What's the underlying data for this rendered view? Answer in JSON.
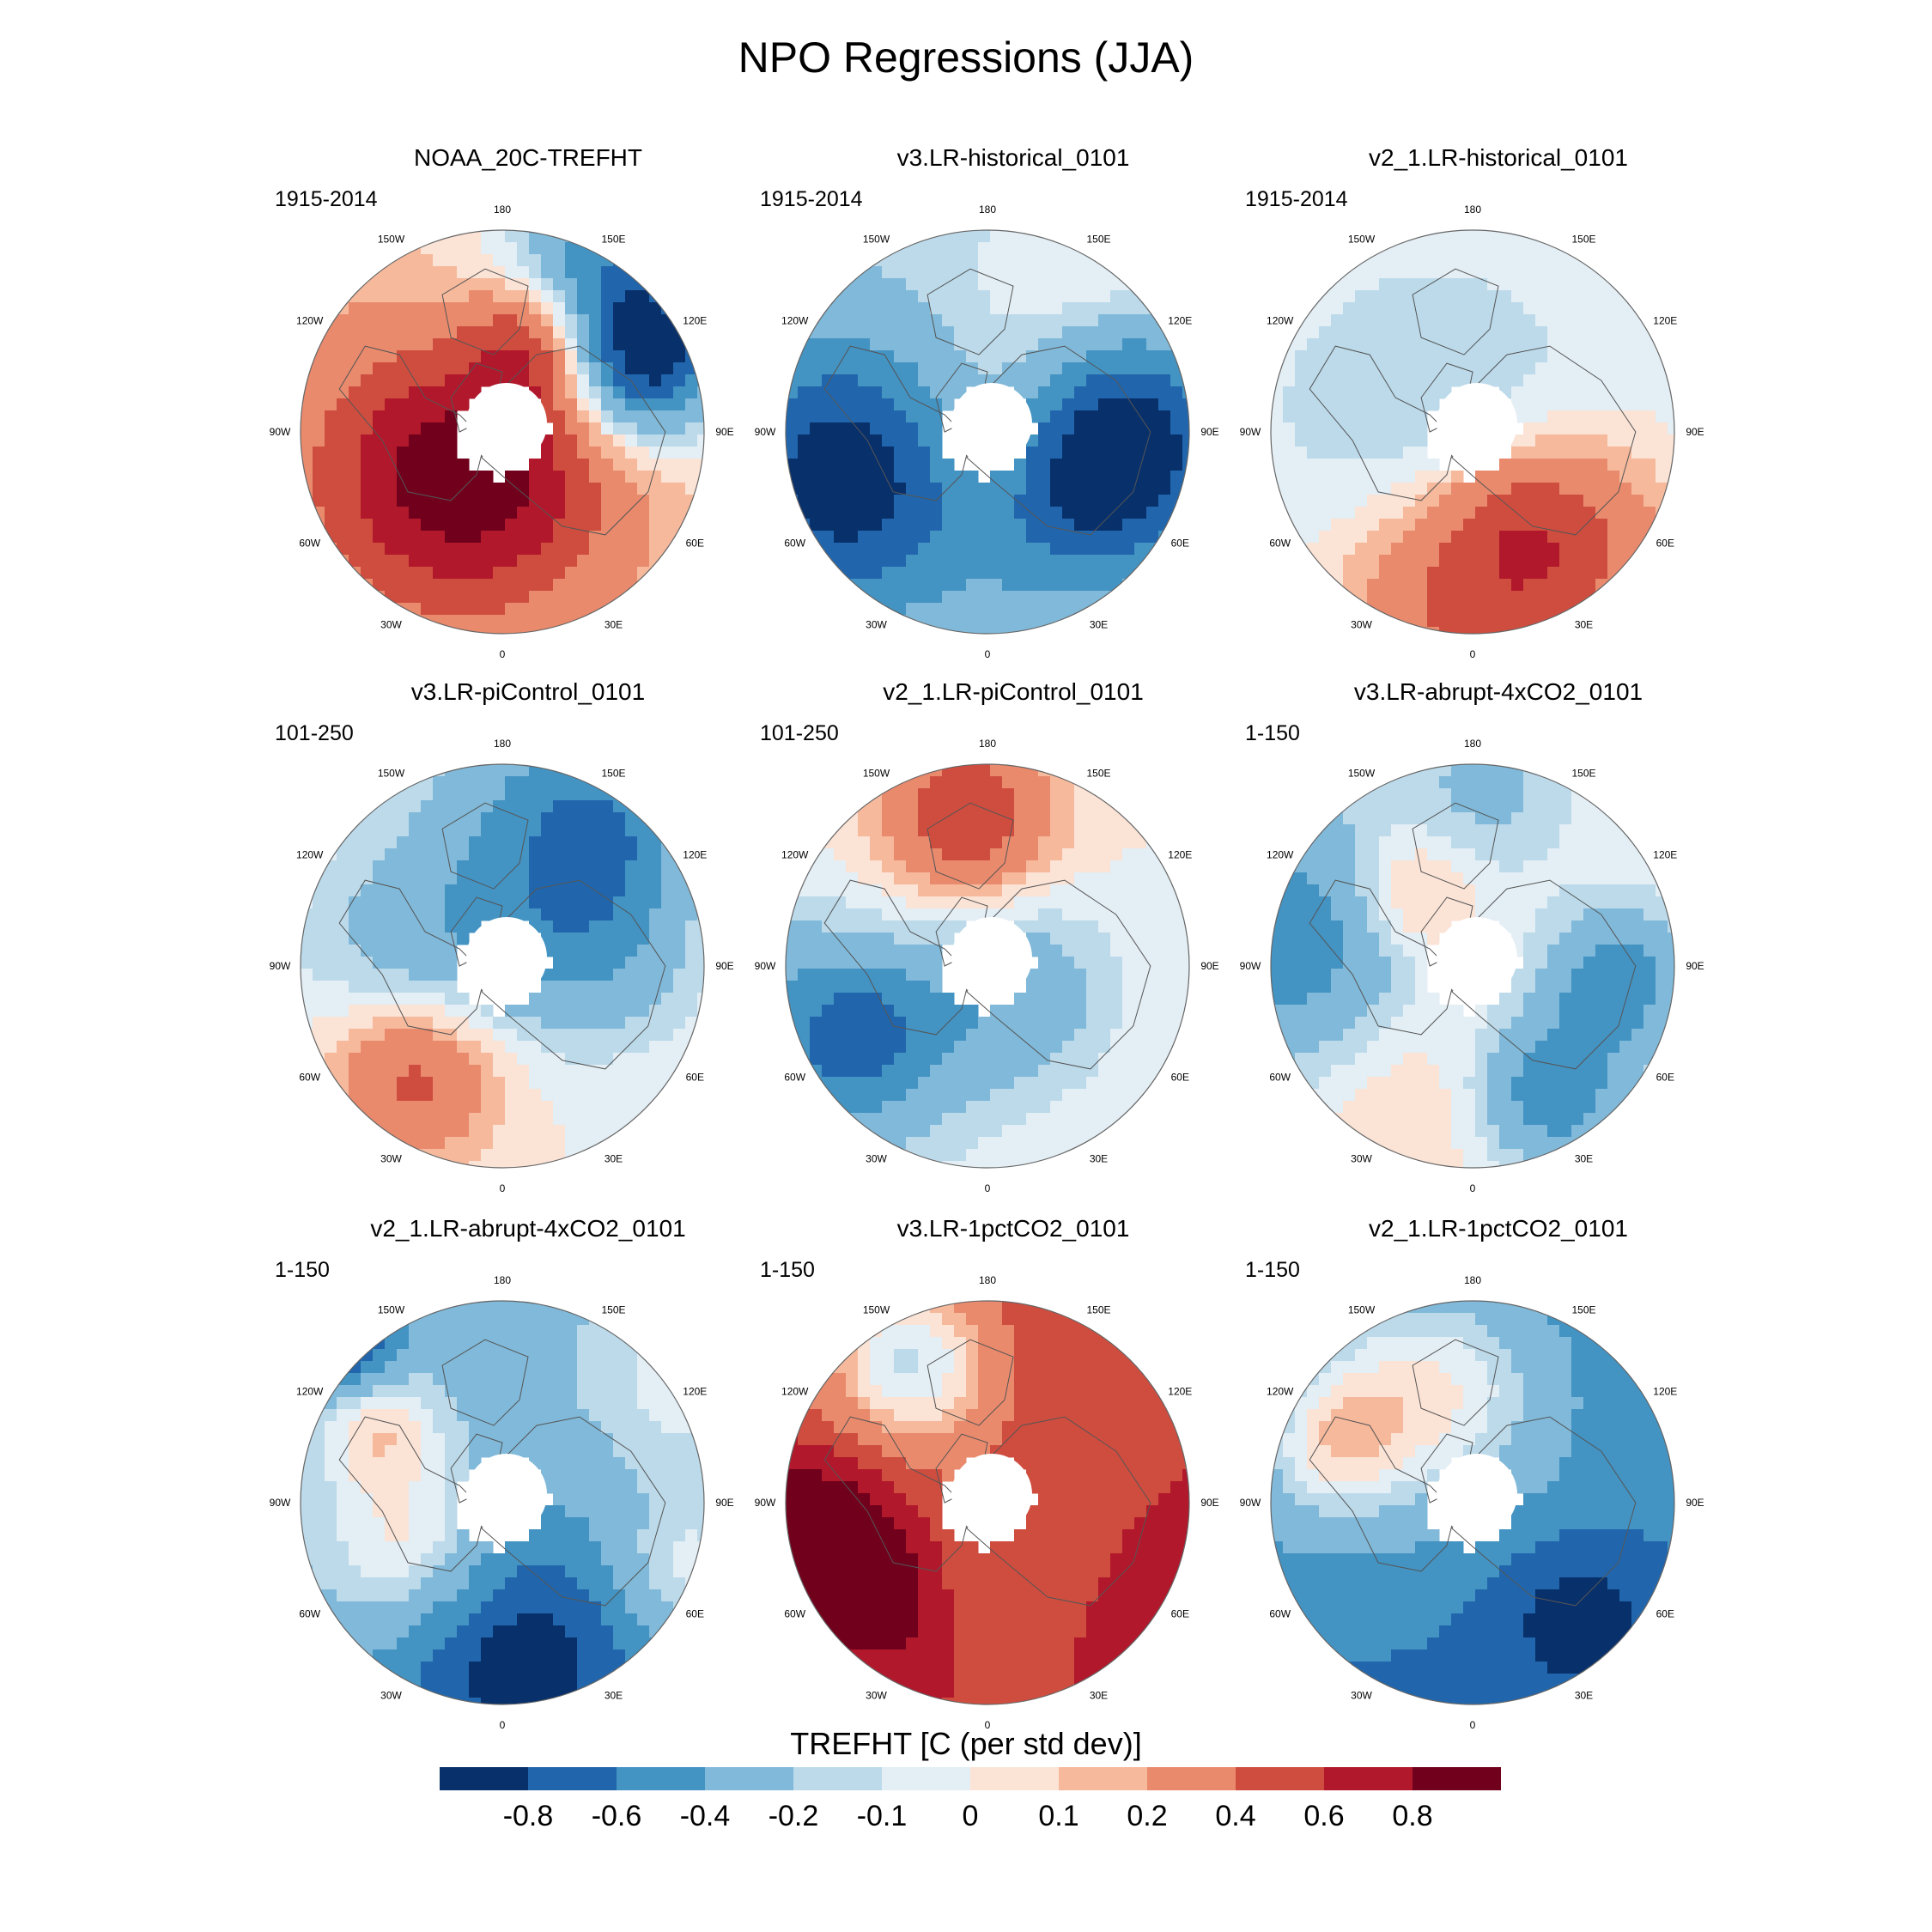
{
  "title": "NPO Regressions (JJA)",
  "lon_labels": [
    "180",
    "150E",
    "120E",
    "90E",
    "60E",
    "30E",
    "0",
    "30W",
    "60W",
    "90W",
    "120W",
    "150W"
  ],
  "panels": [
    {
      "id": "p1",
      "title": "NOAA_20C-TREFHT",
      "period": "1915-2014",
      "intensity": 0.45,
      "bias": 0.1,
      "seed": 11
    },
    {
      "id": "p2",
      "title": "v3.LR-historical_0101",
      "period": "1915-2014",
      "intensity": 0.4,
      "bias": -0.15,
      "seed": 23
    },
    {
      "id": "p3",
      "title": "v2_1.LR-historical_0101",
      "period": "1915-2014",
      "intensity": 0.3,
      "bias": -0.05,
      "seed": 37
    },
    {
      "id": "p4",
      "title": "v3.LR-piControl_0101",
      "period": "101-250",
      "intensity": 0.3,
      "bias": 0.0,
      "seed": 41
    },
    {
      "id": "p5",
      "title": "v2_1.LR-piControl_0101",
      "period": "101-250",
      "intensity": 0.3,
      "bias": 0.0,
      "seed": 53
    },
    {
      "id": "p6",
      "title": "v3.LR-abrupt-4xCO2_0101",
      "period": "1-150",
      "intensity": 0.35,
      "bias": -0.02,
      "seed": 67
    },
    {
      "id": "p7",
      "title": "v2_1.LR-abrupt-4xCO2_0101",
      "period": "1-150",
      "intensity": 0.35,
      "bias": -0.25,
      "seed": 71
    },
    {
      "id": "p8",
      "title": "v3.LR-1pctCO2_0101",
      "period": "1-150",
      "intensity": 0.3,
      "bias": 0.6,
      "seed": 83
    },
    {
      "id": "p9",
      "title": "v2_1.LR-1pctCO2_0101",
      "period": "1-150",
      "intensity": 0.3,
      "bias": -0.6,
      "seed": 97
    }
  ],
  "colorbar": {
    "title": "TREFHT [C (per std dev)]",
    "ticks": [
      "-0.8",
      "-0.6",
      "-0.4",
      "-0.2",
      "-0.1",
      "0",
      "0.1",
      "0.2",
      "0.4",
      "0.6",
      "0.8"
    ],
    "levels": [
      -0.8,
      -0.6,
      -0.4,
      -0.2,
      -0.1,
      0,
      0.1,
      0.2,
      0.4,
      0.6,
      0.8
    ],
    "colors": [
      "#08306b",
      "#2166ac",
      "#4393c3",
      "#80b9d9",
      "#bcdaea",
      "#e3eef5",
      "#fbe3d6",
      "#f6b99c",
      "#e98a6d",
      "#cf4d3f",
      "#b2182b",
      "#70001c"
    ]
  },
  "chart_data": {
    "type": "heatmap",
    "title": "NPO Regressions (JJA)",
    "projection": "north polar stereographic",
    "variable": "TREFHT",
    "units": "C (per std dev)",
    "panels": [
      "NOAA_20C-TREFHT",
      "v3.LR-historical_0101",
      "v2_1.LR-historical_0101",
      "v3.LR-piControl_0101",
      "v2_1.LR-piControl_0101",
      "v3.LR-abrupt-4xCO2_0101",
      "v2_1.LR-abrupt-4xCO2_0101",
      "v3.LR-1pctCO2_0101",
      "v2_1.LR-1pctCO2_0101"
    ],
    "periods": [
      "1915-2014",
      "1915-2014",
      "1915-2014",
      "101-250",
      "101-250",
      "1-150",
      "1-150",
      "1-150",
      "1-150"
    ],
    "levels": [
      -0.8,
      -0.6,
      -0.4,
      -0.2,
      -0.1,
      0,
      0.1,
      0.2,
      0.4,
      0.6,
      0.8
    ]
  }
}
